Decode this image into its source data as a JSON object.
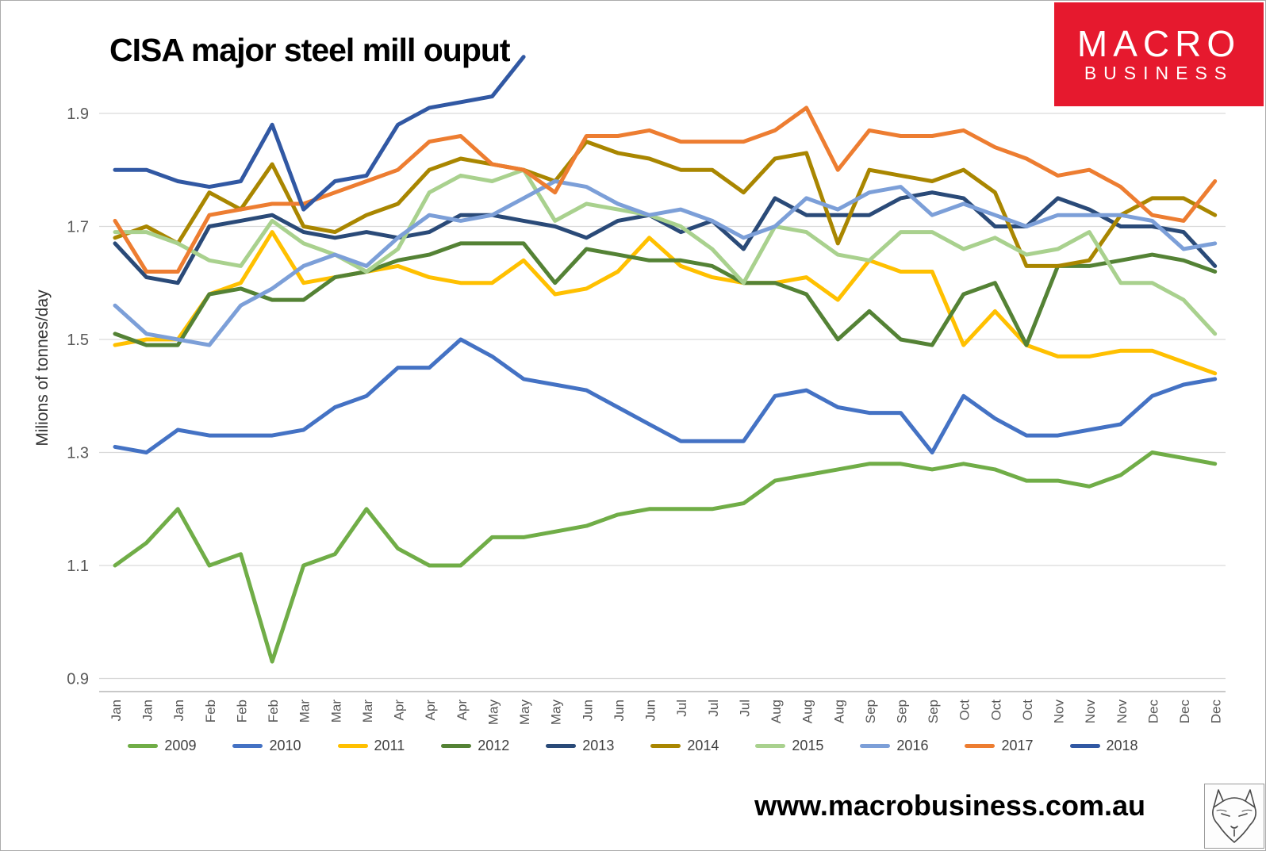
{
  "page": {
    "title": "CISA major steel mill ouput",
    "footer_url": "www.macrobusiness.com.au"
  },
  "logo": {
    "line1": "MACRO",
    "line2": "BUSINESS",
    "bg_color": "#e6192e"
  },
  "chart_data": {
    "type": "line",
    "title": "CISA major steel mill ouput",
    "ylabel": "Milions of tonnes/day",
    "ylim": [
      0.875,
      2.02
    ],
    "yticks": [
      0.9,
      1.1,
      1.3,
      1.5,
      1.7,
      1.9
    ],
    "grid": true,
    "legend_position": "bottom",
    "gridline_color": "#d9d9d9",
    "axis_text_color": "#595959",
    "x_labels": [
      "Jan",
      "Jan",
      "Jan",
      "Feb",
      "Feb",
      "Feb",
      "Mar",
      "Mar",
      "Mar",
      "Apr",
      "Apr",
      "Apr",
      "May",
      "May",
      "May",
      "Jun",
      "Jun",
      "Jun",
      "Jul",
      "Jul",
      "Jul",
      "Aug",
      "Aug",
      "Aug",
      "Sep",
      "Sep",
      "Sep",
      "Oct",
      "Oct",
      "Oct",
      "Nov",
      "Nov",
      "Nov",
      "Dec",
      "Dec",
      "Dec"
    ],
    "series": [
      {
        "name": "2009",
        "color": "#70ad47",
        "values": [
          1.1,
          1.14,
          1.2,
          1.1,
          1.12,
          0.93,
          1.1,
          1.12,
          1.2,
          1.13,
          1.1,
          1.1,
          1.15,
          1.15,
          1.16,
          1.17,
          1.19,
          1.2,
          1.2,
          1.2,
          1.21,
          1.25,
          1.26,
          1.27,
          1.28,
          1.28,
          1.27,
          1.28,
          1.27,
          1.25,
          1.25,
          1.24,
          1.26,
          1.3,
          1.29,
          1.28
        ]
      },
      {
        "name": "2010",
        "color": "#4472c4",
        "values": [
          1.31,
          1.3,
          1.34,
          1.33,
          1.33,
          1.33,
          1.34,
          1.38,
          1.4,
          1.45,
          1.45,
          1.5,
          1.47,
          1.43,
          1.42,
          1.41,
          1.38,
          1.35,
          1.32,
          1.32,
          1.32,
          1.4,
          1.41,
          1.38,
          1.37,
          1.37,
          1.3,
          1.4,
          1.36,
          1.33,
          1.33,
          1.34,
          1.35,
          1.4,
          1.42,
          1.43
        ]
      },
      {
        "name": "2011",
        "color": "#ffc000",
        "values": [
          1.49,
          1.5,
          1.5,
          1.58,
          1.6,
          1.69,
          1.6,
          1.61,
          1.62,
          1.63,
          1.61,
          1.6,
          1.6,
          1.64,
          1.58,
          1.59,
          1.62,
          1.68,
          1.63,
          1.61,
          1.6,
          1.6,
          1.61,
          1.57,
          1.64,
          1.62,
          1.62,
          1.49,
          1.55,
          1.49,
          1.47,
          1.47,
          1.48,
          1.48,
          1.46,
          1.44
        ]
      },
      {
        "name": "2012",
        "color": "#548235",
        "values": [
          1.51,
          1.49,
          1.49,
          1.58,
          1.59,
          1.57,
          1.57,
          1.61,
          1.62,
          1.64,
          1.65,
          1.67,
          1.67,
          1.67,
          1.6,
          1.66,
          1.65,
          1.64,
          1.64,
          1.63,
          1.6,
          1.6,
          1.58,
          1.5,
          1.55,
          1.5,
          1.49,
          1.58,
          1.6,
          1.49,
          1.63,
          1.63,
          1.64,
          1.65,
          1.64,
          1.62
        ]
      },
      {
        "name": "2013",
        "color": "#2a4a78",
        "values": [
          1.67,
          1.61,
          1.6,
          1.7,
          1.71,
          1.72,
          1.69,
          1.68,
          1.69,
          1.68,
          1.69,
          1.72,
          1.72,
          1.71,
          1.7,
          1.68,
          1.71,
          1.72,
          1.69,
          1.71,
          1.66,
          1.75,
          1.72,
          1.72,
          1.72,
          1.75,
          1.76,
          1.75,
          1.7,
          1.7,
          1.75,
          1.73,
          1.7,
          1.7,
          1.69,
          1.63
        ]
      },
      {
        "name": "2014",
        "color": "#a98600",
        "values": [
          1.68,
          1.7,
          1.67,
          1.76,
          1.73,
          1.81,
          1.7,
          1.69,
          1.72,
          1.74,
          1.8,
          1.82,
          1.81,
          1.8,
          1.78,
          1.85,
          1.83,
          1.82,
          1.8,
          1.8,
          1.76,
          1.82,
          1.83,
          1.67,
          1.8,
          1.79,
          1.78,
          1.8,
          1.76,
          1.63,
          1.63,
          1.64,
          1.72,
          1.75,
          1.75,
          1.72
        ]
      },
      {
        "name": "2015",
        "color": "#a9d18e",
        "values": [
          1.69,
          1.69,
          1.67,
          1.64,
          1.63,
          1.71,
          1.67,
          1.65,
          1.62,
          1.66,
          1.76,
          1.79,
          1.78,
          1.8,
          1.71,
          1.74,
          1.73,
          1.72,
          1.7,
          1.66,
          1.6,
          1.7,
          1.69,
          1.65,
          1.64,
          1.69,
          1.69,
          1.66,
          1.68,
          1.65,
          1.66,
          1.69,
          1.6,
          1.6,
          1.57,
          1.51
        ]
      },
      {
        "name": "2016",
        "color": "#7c9fd8",
        "values": [
          1.56,
          1.51,
          1.5,
          1.49,
          1.56,
          1.59,
          1.63,
          1.65,
          1.63,
          1.68,
          1.72,
          1.71,
          1.72,
          1.75,
          1.78,
          1.77,
          1.74,
          1.72,
          1.73,
          1.71,
          1.68,
          1.7,
          1.75,
          1.73,
          1.76,
          1.77,
          1.72,
          1.74,
          1.72,
          1.7,
          1.72,
          1.72,
          1.72,
          1.71,
          1.66,
          1.67
        ]
      },
      {
        "name": "2017",
        "color": "#ed7d31",
        "values": [
          1.71,
          1.62,
          1.62,
          1.72,
          1.73,
          1.74,
          1.74,
          1.76,
          1.78,
          1.8,
          1.85,
          1.86,
          1.81,
          1.8,
          1.76,
          1.86,
          1.86,
          1.87,
          1.85,
          1.85,
          1.85,
          1.87,
          1.91,
          1.8,
          1.87,
          1.86,
          1.86,
          1.87,
          1.84,
          1.82,
          1.79,
          1.8,
          1.77,
          1.72,
          1.71,
          1.78
        ]
      },
      {
        "name": "2018",
        "color": "#3158a3",
        "values": [
          1.8,
          1.8,
          1.78,
          1.77,
          1.78,
          1.88,
          1.73,
          1.78,
          1.79,
          1.88,
          1.91,
          1.92,
          1.93,
          2.0
        ]
      }
    ]
  }
}
